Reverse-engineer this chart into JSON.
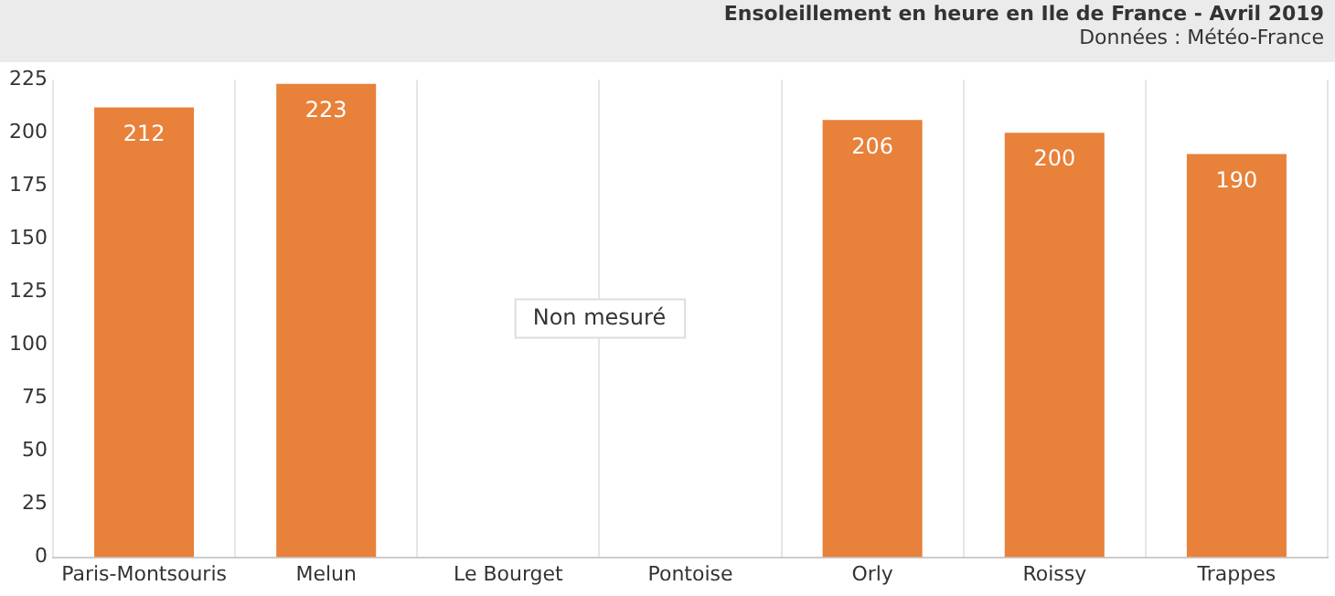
{
  "chart_data": {
    "type": "bar",
    "title": "Ensoleillement en heure en Ile de France - Avril 2019",
    "subtitle": "Données : Météo-France",
    "categories": [
      "Paris-Montsouris",
      "Melun",
      "Le Bourget",
      "Pontoise",
      "Orly",
      "Roissy",
      "Trappes"
    ],
    "values": [
      212,
      223,
      null,
      null,
      206,
      200,
      190
    ],
    "color": "#e8813a",
    "ylim": [
      0,
      225
    ],
    "yticks": [
      0,
      25,
      50,
      75,
      100,
      125,
      150,
      175,
      200,
      225
    ],
    "grid": "x",
    "data_labels": true,
    "legend": false,
    "annotations": [
      "Non mesuré"
    ]
  }
}
